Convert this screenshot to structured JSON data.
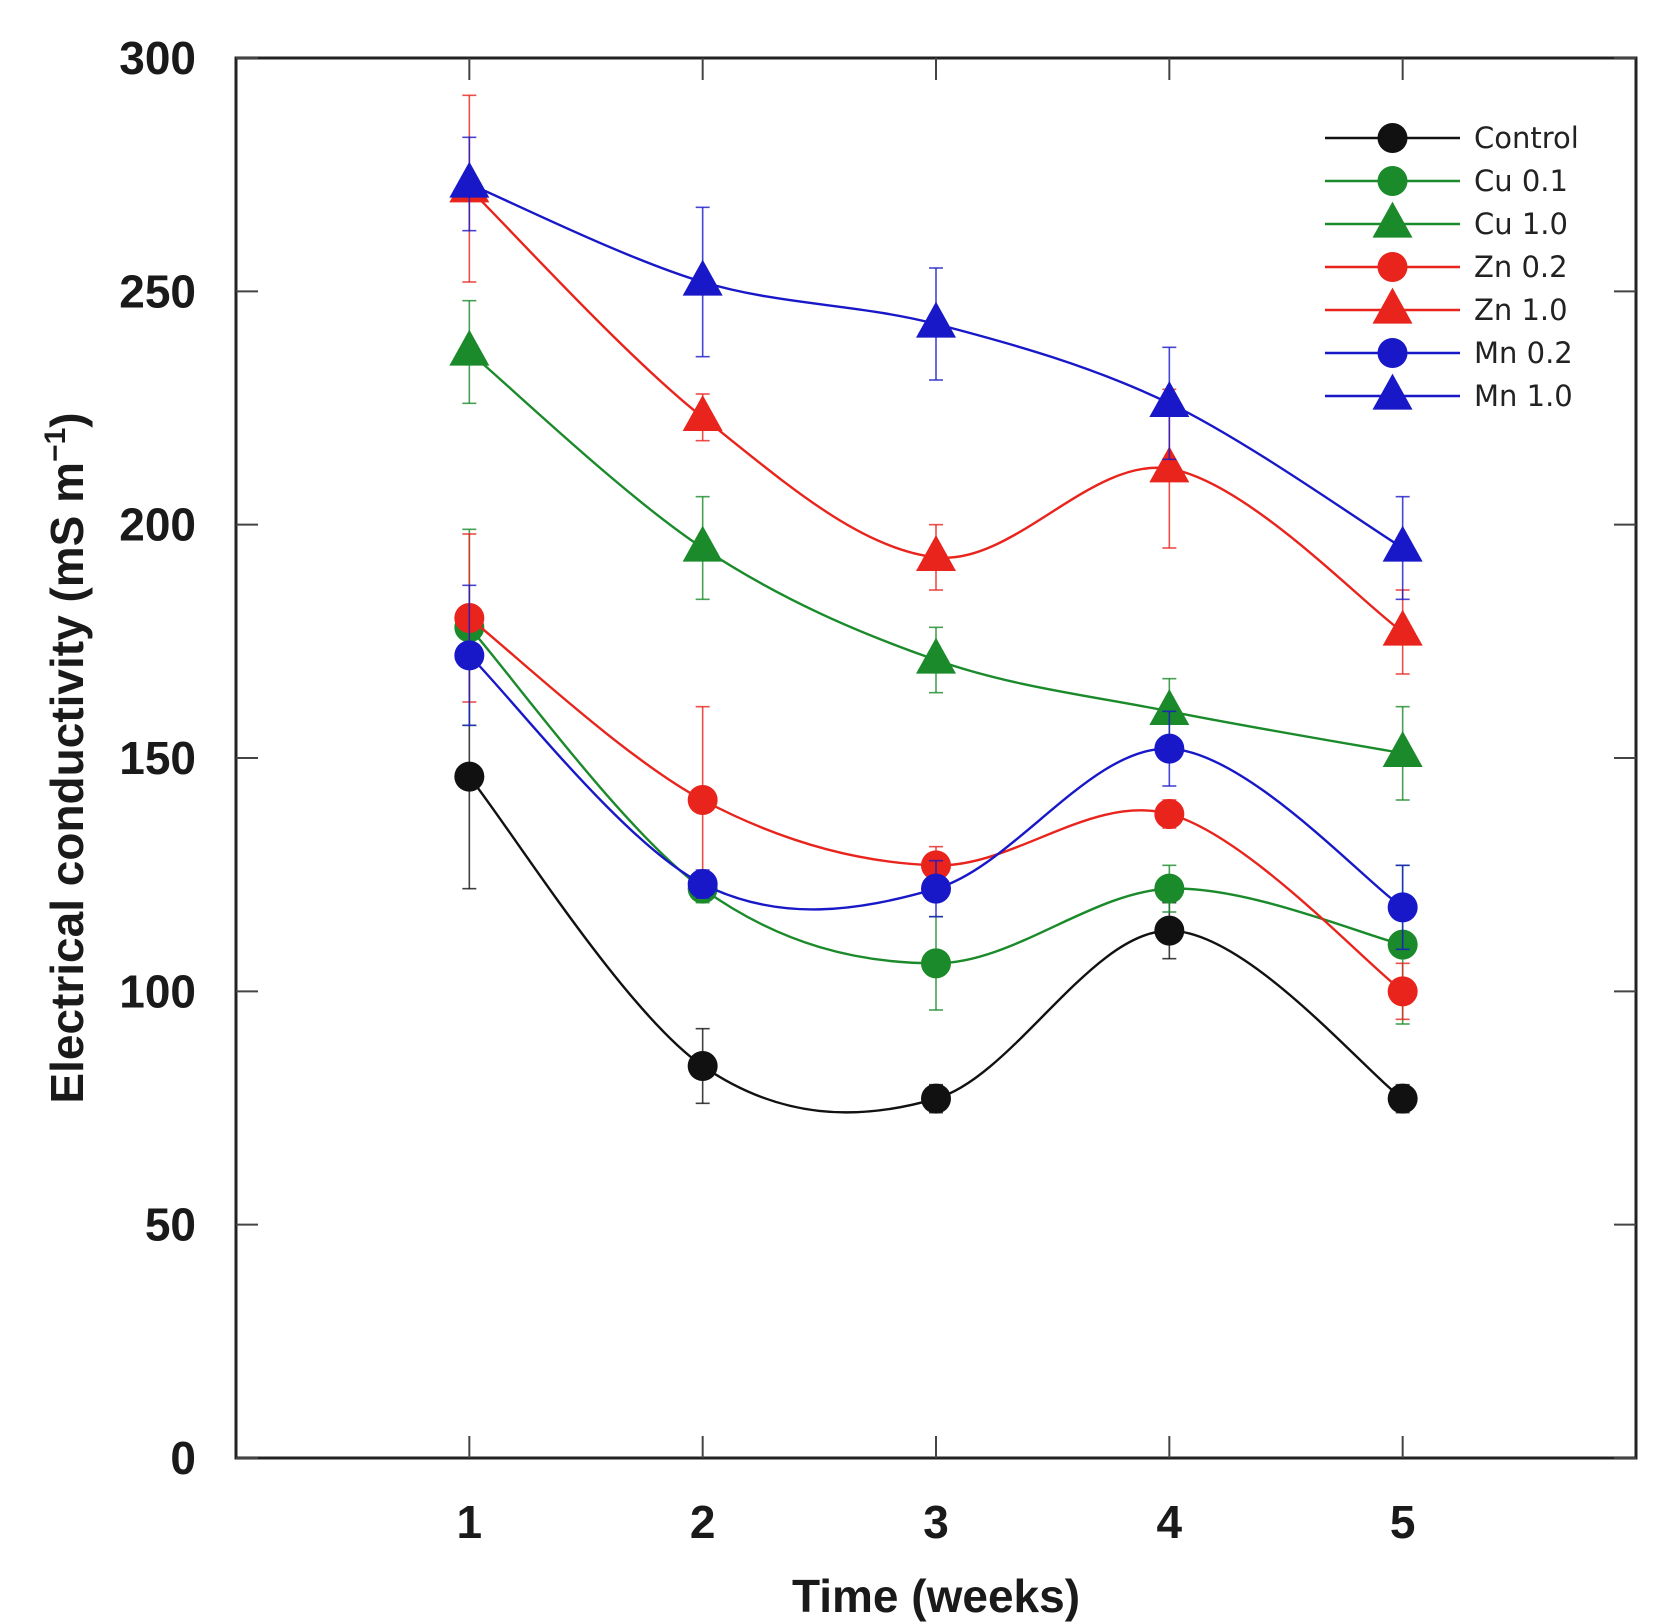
{
  "chart_data": {
    "type": "line",
    "title": "",
    "xlabel": "Time (weeks)",
    "ylabel": {
      "main": "Electrical conductivity (mS m",
      "superscript": "−1",
      "close": ")"
    },
    "x": [
      1,
      2,
      3,
      4,
      5
    ],
    "x_ticks": [
      "1",
      "2",
      "3",
      "4",
      "5"
    ],
    "xlim": [
      0,
      6
    ],
    "ylim": [
      0,
      300
    ],
    "y_ticks": [
      "0",
      "50",
      "100",
      "150",
      "200",
      "250",
      "300"
    ],
    "legend_position": "top-right",
    "series": [
      {
        "name": "Control",
        "color": "#111111",
        "marker": "circle",
        "values": [
          146,
          84,
          77,
          113,
          77
        ],
        "errors": [
          24,
          8,
          3,
          6,
          3
        ]
      },
      {
        "name": "Cu 0.1",
        "color": "#1a8a2a",
        "marker": "circle",
        "values": [
          178,
          122,
          106,
          122,
          110
        ],
        "errors": [
          21,
          3,
          10,
          5,
          17
        ]
      },
      {
        "name": "Cu 1.0",
        "color": "#1a8a2a",
        "marker": "triangle",
        "values": [
          237,
          195,
          171,
          160,
          151
        ],
        "errors": [
          11,
          11,
          7,
          7,
          10
        ]
      },
      {
        "name": "Zn 0.2",
        "color": "#e8241c",
        "marker": "circle",
        "values": [
          180,
          141,
          127,
          138,
          100
        ],
        "errors": [
          18,
          20,
          4,
          3,
          6
        ]
      },
      {
        "name": "Zn 1.0",
        "color": "#e8241c",
        "marker": "triangle",
        "values": [
          272,
          223,
          193,
          212,
          177
        ],
        "errors": [
          20,
          5,
          7,
          17,
          9
        ]
      },
      {
        "name": "Mn 0.2",
        "color": "#1818c8",
        "marker": "circle",
        "values": [
          172,
          123,
          122,
          152,
          118
        ],
        "errors": [
          15,
          3,
          6,
          8,
          9
        ]
      },
      {
        "name": "Mn 1.0",
        "color": "#1818c8",
        "marker": "triangle",
        "values": [
          273,
          252,
          243,
          226,
          195
        ],
        "errors": [
          10,
          16,
          12,
          12,
          11
        ]
      }
    ]
  }
}
